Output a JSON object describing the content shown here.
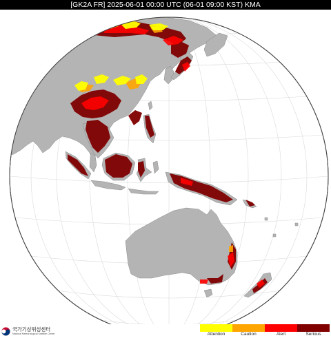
{
  "title": "[GK2A FR] 2025-06-01 00:00 UTC (06-01 09:00 KST) KMA",
  "logo": {
    "name_ko": "국가기상위성센터",
    "name_en": "National Meteorological Satellite Center"
  },
  "legend": {
    "items": [
      {
        "label": "Attention",
        "color": "#ffff00"
      },
      {
        "label": "Caution",
        "color": "#ffa500"
      },
      {
        "label": "Alert",
        "color": "#ff0000"
      },
      {
        "label": "Serious",
        "color": "#800000"
      }
    ]
  },
  "colors": {
    "land": "#b4b4b4",
    "ocean": "#ffffff",
    "graticule": "#d9d9d9",
    "coastline": "#888888"
  }
}
